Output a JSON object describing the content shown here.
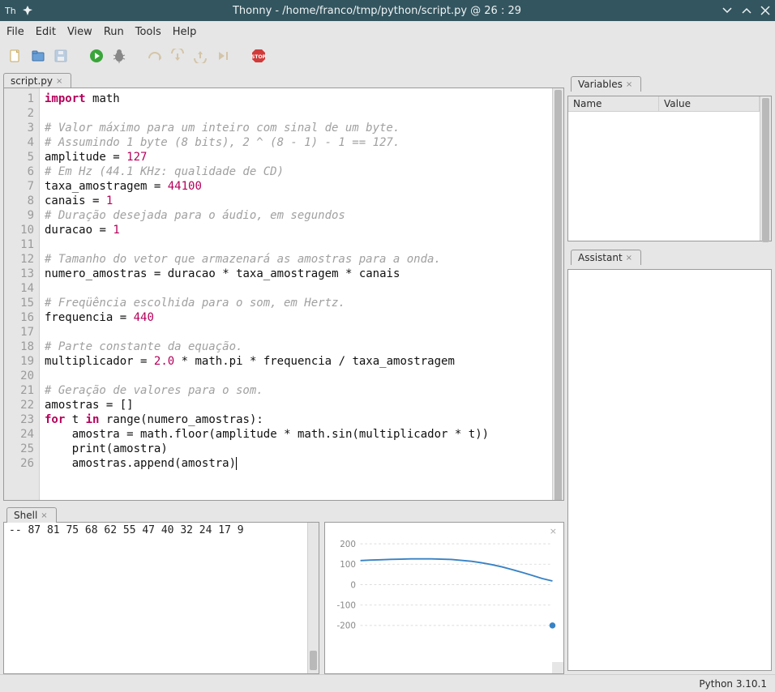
{
  "window": {
    "title": "Thonny  -  /home/franco/tmp/python/script.py  @  26 : 29",
    "bg": "#33555f"
  },
  "menubar": [
    "File",
    "Edit",
    "View",
    "Run",
    "Tools",
    "Help"
  ],
  "toolbar_icons": [
    "new-file",
    "open-file",
    "save-file",
    "sep",
    "run",
    "debug",
    "sep",
    "step-over",
    "step-into",
    "step-out",
    "resume",
    "sep",
    "stop"
  ],
  "editor": {
    "tab_label": "script.py",
    "line_count": 26,
    "tokens_by_line": [
      [
        [
          "mag",
          "import"
        ],
        [
          "sp",
          " "
        ],
        [
          "id",
          "math"
        ]
      ],
      [],
      [
        [
          "cmt",
          "# Valor máximo para um inteiro com sinal de um byte."
        ]
      ],
      [
        [
          "cmt",
          "# Assumindo 1 byte (8 bits), 2 ^ (8 - 1) - 1 == 127."
        ]
      ],
      [
        [
          "id",
          "amplitude"
        ],
        [
          "sp",
          " "
        ],
        [
          "op",
          "="
        ],
        [
          "sp",
          " "
        ],
        [
          "num",
          "127"
        ]
      ],
      [
        [
          "cmt",
          "# Em Hz (44.1 KHz: qualidade de CD)"
        ]
      ],
      [
        [
          "id",
          "taxa_amostragem"
        ],
        [
          "sp",
          " "
        ],
        [
          "op",
          "="
        ],
        [
          "sp",
          " "
        ],
        [
          "num",
          "44100"
        ]
      ],
      [
        [
          "id",
          "canais"
        ],
        [
          "sp",
          " "
        ],
        [
          "op",
          "="
        ],
        [
          "sp",
          " "
        ],
        [
          "num",
          "1"
        ]
      ],
      [
        [
          "cmt",
          "# Duração desejada para o áudio, em segundos"
        ]
      ],
      [
        [
          "id",
          "duracao"
        ],
        [
          "sp",
          " "
        ],
        [
          "op",
          "="
        ],
        [
          "sp",
          " "
        ],
        [
          "num",
          "1"
        ]
      ],
      [],
      [
        [
          "cmt",
          "# Tamanho do vetor que armazenará as amostras para a onda."
        ]
      ],
      [
        [
          "id",
          "numero_amostras"
        ],
        [
          "sp",
          " "
        ],
        [
          "op",
          "="
        ],
        [
          "sp",
          " "
        ],
        [
          "id",
          "duracao"
        ],
        [
          "sp",
          " "
        ],
        [
          "op",
          "*"
        ],
        [
          "sp",
          " "
        ],
        [
          "id",
          "taxa_amostragem"
        ],
        [
          "sp",
          " "
        ],
        [
          "op",
          "*"
        ],
        [
          "sp",
          " "
        ],
        [
          "id",
          "canais"
        ]
      ],
      [],
      [
        [
          "cmt",
          "# Freqüência escolhida para o som, em Hertz."
        ]
      ],
      [
        [
          "id",
          "frequencia"
        ],
        [
          "sp",
          " "
        ],
        [
          "op",
          "="
        ],
        [
          "sp",
          " "
        ],
        [
          "num",
          "440"
        ]
      ],
      [],
      [
        [
          "cmt",
          "# Parte constante da equação."
        ]
      ],
      [
        [
          "id",
          "multiplicador"
        ],
        [
          "sp",
          " "
        ],
        [
          "op",
          "="
        ],
        [
          "sp",
          " "
        ],
        [
          "num",
          "2.0"
        ],
        [
          "sp",
          " "
        ],
        [
          "op",
          "*"
        ],
        [
          "sp",
          " "
        ],
        [
          "id",
          "math"
        ],
        [
          "op",
          "."
        ],
        [
          "id",
          "pi"
        ],
        [
          "sp",
          " "
        ],
        [
          "op",
          "*"
        ],
        [
          "sp",
          " "
        ],
        [
          "id",
          "frequencia"
        ],
        [
          "sp",
          " "
        ],
        [
          "op",
          "/"
        ],
        [
          "sp",
          " "
        ],
        [
          "id",
          "taxa_amostragem"
        ]
      ],
      [],
      [
        [
          "cmt",
          "# Geração de valores para o som."
        ]
      ],
      [
        [
          "id",
          "amostras"
        ],
        [
          "sp",
          " "
        ],
        [
          "op",
          "="
        ],
        [
          "sp",
          " "
        ],
        [
          "op",
          "[]"
        ]
      ],
      [
        [
          "mag",
          "for"
        ],
        [
          "sp",
          " "
        ],
        [
          "id",
          "t"
        ],
        [
          "sp",
          " "
        ],
        [
          "mag",
          "in"
        ],
        [
          "sp",
          " "
        ],
        [
          "id",
          "range"
        ],
        [
          "op",
          "("
        ],
        [
          "id",
          "numero_amostras"
        ],
        [
          "op",
          "):"
        ]
      ],
      [
        [
          "sp",
          "    "
        ],
        [
          "id",
          "amostra"
        ],
        [
          "sp",
          " "
        ],
        [
          "op",
          "="
        ],
        [
          "sp",
          " "
        ],
        [
          "id",
          "math"
        ],
        [
          "op",
          "."
        ],
        [
          "id",
          "floor"
        ],
        [
          "op",
          "("
        ],
        [
          "id",
          "amplitude"
        ],
        [
          "sp",
          " "
        ],
        [
          "op",
          "*"
        ],
        [
          "sp",
          " "
        ],
        [
          "id",
          "math"
        ],
        [
          "op",
          "."
        ],
        [
          "id",
          "sin"
        ],
        [
          "op",
          "("
        ],
        [
          "id",
          "multiplicador"
        ],
        [
          "sp",
          " "
        ],
        [
          "op",
          "*"
        ],
        [
          "sp",
          " "
        ],
        [
          "id",
          "t"
        ],
        [
          "op",
          "))"
        ]
      ],
      [
        [
          "sp",
          "    "
        ],
        [
          "id",
          "print"
        ],
        [
          "op",
          "("
        ],
        [
          "id",
          "amostra"
        ],
        [
          "op",
          ")"
        ]
      ],
      [
        [
          "sp",
          "    "
        ],
        [
          "id",
          "amostras"
        ],
        [
          "op",
          "."
        ],
        [
          "id",
          "append"
        ],
        [
          "op",
          "("
        ],
        [
          "id",
          "amostra"
        ],
        [
          "op",
          ")"
        ],
        [
          "caret",
          ""
        ]
      ]
    ]
  },
  "shell": {
    "tab_label": "Shell",
    "output_lines": [
      "--",
      "87",
      "81",
      "75",
      "68",
      "62",
      "55",
      "47",
      "40",
      "32",
      "24",
      "17",
      "9"
    ]
  },
  "plot": {
    "ylim": [
      -250,
      250
    ],
    "yticks": [
      200,
      100,
      0,
      -100,
      -200
    ],
    "line_color": "#3882c4",
    "grid_color": "#dcdcdc",
    "marker_color": "#3882c4",
    "series": [
      118,
      120,
      122,
      124,
      125,
      126,
      126,
      126,
      125,
      123,
      119,
      114,
      107,
      98,
      87,
      74,
      60,
      45,
      30,
      18
    ],
    "marker_index": 19,
    "marker_y": -200,
    "close_label": "×"
  },
  "variables": {
    "tab_label": "Variables",
    "col_name": "Name",
    "col_value": "Value"
  },
  "assistant": {
    "tab_label": "Assistant"
  },
  "statusbar": {
    "python": "Python 3.10.1"
  }
}
